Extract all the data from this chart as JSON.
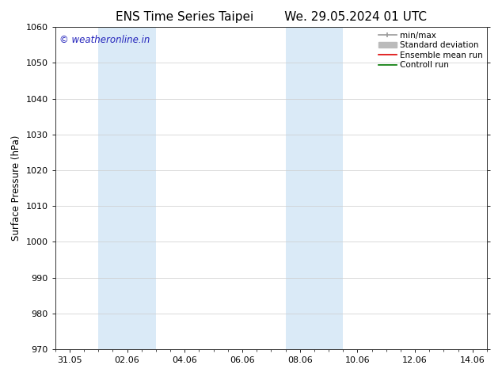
{
  "title_left": "ENS Time Series Taipei",
  "title_right": "We. 29.05.2024 01 UTC",
  "ylabel": "Surface Pressure (hPa)",
  "ylim": [
    970,
    1060
  ],
  "yticks": [
    970,
    980,
    990,
    1000,
    1010,
    1020,
    1030,
    1040,
    1050,
    1060
  ],
  "xtick_labels": [
    "31.05",
    "02.06",
    "04.06",
    "06.06",
    "08.06",
    "10.06",
    "12.06",
    "14.06"
  ],
  "xtick_positions": [
    0,
    2,
    4,
    6,
    8,
    10,
    12,
    14
  ],
  "xlim": [
    -0.5,
    14.5
  ],
  "shaded_regions": [
    {
      "xmin": 1.0,
      "xmax": 3.0,
      "color": "#daeaf7"
    },
    {
      "xmin": 7.5,
      "xmax": 9.5,
      "color": "#daeaf7"
    }
  ],
  "watermark_text": "© weatheronline.in",
  "watermark_color": "#2222bb",
  "watermark_fontsize": 8.5,
  "legend_entries": [
    {
      "label": "min/max",
      "color": "#999999",
      "lw": 1.2,
      "type": "minmax"
    },
    {
      "label": "Standard deviation",
      "color": "#bbbbbb",
      "lw": 5,
      "type": "band"
    },
    {
      "label": "Ensemble mean run",
      "color": "#dd0000",
      "lw": 1.2,
      "type": "line"
    },
    {
      "label": "Controll run",
      "color": "#007700",
      "lw": 1.2,
      "type": "line"
    }
  ],
  "bg_color": "#ffffff",
  "plot_bg_color": "#ffffff",
  "grid_color": "#cccccc",
  "title_fontsize": 11,
  "axis_label_fontsize": 8.5,
  "tick_fontsize": 8
}
